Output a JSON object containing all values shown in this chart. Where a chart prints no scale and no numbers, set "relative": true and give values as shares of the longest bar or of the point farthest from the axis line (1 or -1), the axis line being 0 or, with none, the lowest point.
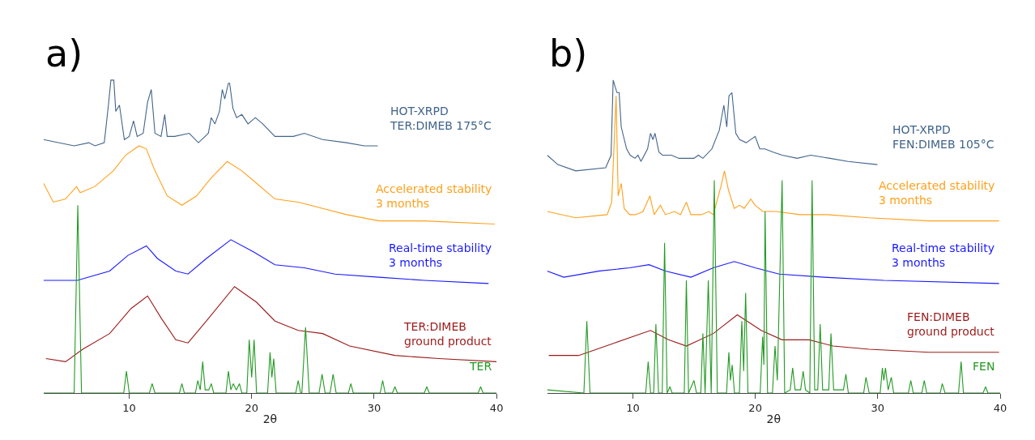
{
  "chart_data": [
    {
      "type": "line",
      "title": "a)",
      "xlabel": "2θ",
      "xlim": [
        3,
        40
      ],
      "xticks": [
        10,
        20,
        30,
        40
      ],
      "relative": true,
      "tick_labels": "x",
      "series": [
        {
          "name": "HOT-XRPD\nTER:DIMEB 175°C",
          "color": "#41648a",
          "x": [
            3,
            5.5,
            6.7,
            7.2,
            7.96,
            8.3,
            8.5,
            8.74,
            8.9,
            9.2,
            9.6,
            10.0,
            10.35,
            10.65,
            11.14,
            11.5,
            11.8,
            12.1,
            12.6,
            12.9,
            13.1,
            13.7,
            14.9,
            15.65,
            16.46,
            16.7,
            17.0,
            17.37,
            17.6,
            17.8,
            18.1,
            18.2,
            18.47,
            18.77,
            19.2,
            19.7,
            20.3,
            20.9,
            21.9,
            23.4,
            24.3,
            25.8,
            27.75,
            29.2,
            30.3
          ],
          "values": [
            0.81,
            0.79,
            0.8,
            0.79,
            0.8,
            0.92,
            1.0,
            1.0,
            0.9,
            0.92,
            0.81,
            0.82,
            0.87,
            0.82,
            0.83,
            0.93,
            0.97,
            0.83,
            0.82,
            0.89,
            0.82,
            0.82,
            0.83,
            0.8,
            0.83,
            0.88,
            0.86,
            0.9,
            0.97,
            0.94,
            0.99,
            0.99,
            0.91,
            0.88,
            0.89,
            0.86,
            0.88,
            0.86,
            0.82,
            0.82,
            0.83,
            0.81,
            0.8,
            0.79,
            0.79
          ]
        },
        {
          "name": "Accelerated stability\n3 months",
          "color": "#ffa01a",
          "x": [
            3,
            3.8,
            4.8,
            5.7,
            6.0,
            7.2,
            8.7,
            9.7,
            10.8,
            11.4,
            12.1,
            13.1,
            14.3,
            15.5,
            16.75,
            18.0,
            19.2,
            20.4,
            21.9,
            23.8,
            25.8,
            27.75,
            30.4,
            34.1,
            39.85
          ],
          "values": [
            0.67,
            0.61,
            0.62,
            0.66,
            0.64,
            0.66,
            0.71,
            0.76,
            0.79,
            0.78,
            0.71,
            0.63,
            0.6,
            0.63,
            0.69,
            0.74,
            0.71,
            0.67,
            0.62,
            0.61,
            0.59,
            0.57,
            0.55,
            0.55,
            0.54
          ]
        },
        {
          "name": "Real-time stability\n3 months",
          "color": "#1a1aff",
          "x": [
            3,
            5.76,
            8.4,
            9.9,
            11.4,
            12.3,
            13.8,
            14.8,
            16.3,
            18.3,
            20.2,
            21.9,
            24.3,
            26.8,
            30.4,
            34.1,
            39.35
          ],
          "values": [
            0.36,
            0.36,
            0.39,
            0.44,
            0.47,
            0.43,
            0.39,
            0.38,
            0.43,
            0.49,
            0.45,
            0.41,
            0.4,
            0.38,
            0.37,
            0.36,
            0.35
          ]
        },
        {
          "name": "TER:DIMEB\nground product",
          "color": "#9c1a1a",
          "x": [
            3.2,
            4.8,
            6.2,
            8.4,
            10.15,
            11.5,
            12.6,
            13.8,
            14.8,
            16.3,
            18.6,
            20.4,
            21.9,
            23.8,
            25.8,
            28.0,
            31.7,
            35.3,
            40
          ],
          "values": [
            0.11,
            0.1,
            0.14,
            0.19,
            0.27,
            0.31,
            0.24,
            0.17,
            0.16,
            0.23,
            0.34,
            0.29,
            0.23,
            0.2,
            0.19,
            0.15,
            0.12,
            0.11,
            0.1
          ]
        },
        {
          "name": "TER",
          "color": "#229a22",
          "x": [
            3,
            5.5,
            5.8,
            6.1,
            9.55,
            9.77,
            10,
            11.65,
            11.87,
            12.1,
            14.1,
            14.3,
            14.5,
            15.4,
            15.6,
            15.8,
            16.0,
            16.2,
            16.5,
            16.7,
            16.9,
            17.9,
            18.1,
            18.3,
            18.5,
            18.75,
            19.0,
            19.2,
            19.6,
            19.8,
            20.0,
            20.2,
            20.4,
            21.3,
            21.5,
            21.65,
            21.8,
            22.0,
            23.6,
            23.8,
            24.0,
            24.1,
            24.4,
            24.7,
            25.5,
            25.75,
            26.0,
            26.4,
            26.65,
            26.9,
            27.9,
            28.1,
            28.3,
            30.5,
            30.7,
            30.9,
            31.5,
            31.7,
            31.9,
            34.1,
            34.3,
            34.5,
            38.5,
            38.7,
            38.9,
            40
          ],
          "values": [
            0,
            0,
            0.6,
            0,
            0,
            0.07,
            0,
            0,
            0.03,
            0,
            0,
            0.03,
            0,
            0,
            0.04,
            0.01,
            0.1,
            0.01,
            0.01,
            0.03,
            0,
            0,
            0.07,
            0.01,
            0.03,
            0.01,
            0.03,
            0,
            0,
            0.17,
            0.05,
            0.17,
            0,
            0,
            0.13,
            0.05,
            0.11,
            0,
            0,
            0.04,
            0,
            0,
            0.21,
            0,
            0,
            0.06,
            0,
            0,
            0.06,
            0,
            0,
            0.03,
            0,
            0,
            0.04,
            0,
            0,
            0.02,
            0,
            0,
            0.02,
            0,
            0,
            0.02,
            0,
            0
          ]
        }
      ]
    },
    {
      "type": "line",
      "title": "b)",
      "xlabel": "2θ",
      "xlim": [
        3,
        40
      ],
      "xticks": [
        10,
        20,
        30,
        40
      ],
      "relative": true,
      "tick_labels": "x",
      "series": [
        {
          "name": "HOT-XRPD\nFEN:DIMEB 105°C",
          "color": "#41648a",
          "x": [
            3,
            3.87,
            5.33,
            7.78,
            8.22,
            8.39,
            8.7,
            8.88,
            9.05,
            9.49,
            9.78,
            10.17,
            10.42,
            10.66,
            11.2,
            11.44,
            11.64,
            11.81,
            12.13,
            12.42,
            13.15,
            13.76,
            14.99,
            15.35,
            15.72,
            16.45,
            17.06,
            17.43,
            17.67,
            17.85,
            18.09,
            18.41,
            18.72,
            19.26,
            19.99,
            20.36,
            20.78,
            21.46,
            22.19,
            23.42,
            24.52,
            26.1,
            27.57,
            29.97
          ],
          "values": [
            0.76,
            0.73,
            0.71,
            0.72,
            0.76,
            1.0,
            0.96,
            0.96,
            0.85,
            0.78,
            0.76,
            0.75,
            0.76,
            0.74,
            0.78,
            0.83,
            0.81,
            0.83,
            0.77,
            0.76,
            0.76,
            0.75,
            0.75,
            0.76,
            0.75,
            0.78,
            0.84,
            0.92,
            0.85,
            0.95,
            0.96,
            0.83,
            0.81,
            0.8,
            0.82,
            0.78,
            0.78,
            0.77,
            0.76,
            0.75,
            0.76,
            0.75,
            0.74,
            0.73
          ]
        },
        {
          "name": "Accelerated stability\n3 months",
          "color": "#ffa01a",
          "x": [
            3,
            5.33,
            7.9,
            8.27,
            8.63,
            8.8,
            9.05,
            9.29,
            9.73,
            10.22,
            10.83,
            11.39,
            11.74,
            12.25,
            12.66,
            13.4,
            13.89,
            14.37,
            14.74,
            15.6,
            16.21,
            16.57,
            17.19,
            17.48,
            17.8,
            18.28,
            18.72,
            19.09,
            19.63,
            19.99,
            20.61,
            21.71,
            23.66,
            25.86,
            29.28,
            34.17,
            39.91
          ],
          "values": [
            0.58,
            0.56,
            0.57,
            0.61,
            0.95,
            0.63,
            0.67,
            0.59,
            0.57,
            0.57,
            0.58,
            0.63,
            0.57,
            0.6,
            0.57,
            0.58,
            0.57,
            0.61,
            0.57,
            0.57,
            0.58,
            0.57,
            0.66,
            0.71,
            0.65,
            0.59,
            0.6,
            0.59,
            0.62,
            0.6,
            0.58,
            0.58,
            0.57,
            0.57,
            0.56,
            0.55,
            0.55
          ]
        },
        {
          "name": "Real-time stability\n3 months",
          "color": "#1a1aff",
          "x": [
            3,
            4.36,
            7.29,
            9.73,
            11.32,
            12.66,
            14.74,
            16.57,
            18.28,
            19.99,
            21.95,
            25.62,
            30.5,
            39.91
          ],
          "values": [
            0.39,
            0.37,
            0.39,
            0.4,
            0.41,
            0.39,
            0.37,
            0.4,
            0.42,
            0.4,
            0.38,
            0.37,
            0.36,
            0.35
          ]
        },
        {
          "name": "FEN:DIMEB\nground product",
          "color": "#9c1a1a",
          "x": [
            3.13,
            5.58,
            8.51,
            11.44,
            12.91,
            14.37,
            16.57,
            18.53,
            20.48,
            22.19,
            24.4,
            26.35,
            29.28,
            34.17,
            39.91
          ],
          "values": [
            0.12,
            0.12,
            0.16,
            0.2,
            0.17,
            0.15,
            0.19,
            0.25,
            0.2,
            0.17,
            0.17,
            0.15,
            0.14,
            0.13,
            0.13
          ]
        },
        {
          "name": "FEN",
          "color": "#229a22",
          "x": [
            3,
            6.0,
            6.24,
            6.5,
            11.05,
            11.25,
            11.45,
            11.7,
            11.88,
            12.1,
            12.4,
            12.59,
            12.8,
            13.03,
            13.2,
            14.2,
            14.37,
            14.55,
            14.99,
            15.2,
            15.55,
            15.72,
            15.9,
            16.16,
            16.4,
            16.65,
            16.9,
            17.65,
            17.84,
            17.97,
            18.11,
            18.3,
            18.7,
            18.9,
            19.05,
            19.21,
            19.4,
            20.4,
            20.6,
            20.7,
            20.8,
            21.0,
            21.4,
            21.61,
            21.8,
            22.19,
            22.4,
            22.85,
            23.05,
            23.25,
            23.7,
            23.91,
            24.1,
            24.45,
            24.64,
            24.85,
            25.1,
            25.3,
            25.5,
            26.0,
            26.18,
            26.4,
            27.2,
            27.4,
            27.6,
            28.85,
            29.04,
            29.3,
            30.2,
            30.38,
            30.5,
            30.63,
            30.85,
            31.11,
            31.3,
            32.5,
            32.7,
            32.9,
            33.6,
            33.8,
            34.0,
            35.1,
            35.27,
            35.5,
            36.6,
            36.81,
            37.0,
            38.6,
            38.81,
            39.0,
            40
          ],
          "values": [
            0.01,
            0,
            0.23,
            0,
            0,
            0.1,
            0,
            0,
            0.22,
            0,
            0,
            0.48,
            0,
            0.02,
            0,
            0,
            0.36,
            0,
            0.04,
            0,
            0,
            0.19,
            0,
            0.36,
            0,
            0.68,
            0,
            0,
            0.13,
            0.04,
            0.09,
            0,
            0,
            0.23,
            0.07,
            0.32,
            0,
            0,
            0.18,
            0.09,
            0.58,
            0,
            0,
            0.15,
            0.04,
            0.68,
            0,
            0.01,
            0.08,
            0.01,
            0.01,
            0.07,
            0.01,
            0,
            0.68,
            0.01,
            0.01,
            0.22,
            0.01,
            0.01,
            0.19,
            0.01,
            0.01,
            0.06,
            0,
            0,
            0.05,
            0,
            0,
            0.08,
            0.04,
            0.08,
            0.01,
            0.05,
            0,
            0,
            0.04,
            0,
            0,
            0.04,
            0,
            0,
            0.03,
            0,
            0,
            0.1,
            0,
            0,
            0.02,
            0,
            0
          ]
        }
      ]
    }
  ]
}
